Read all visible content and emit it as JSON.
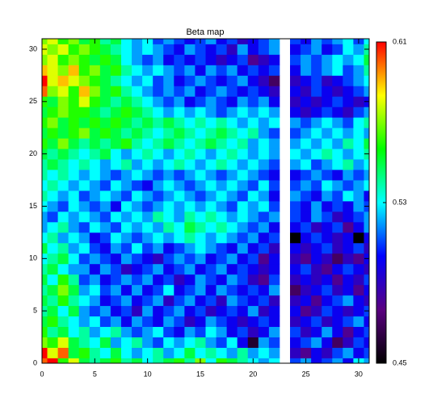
{
  "chart_data": {
    "type": "heatmap",
    "title": "Beta map",
    "x": [
      0,
      1,
      2,
      3,
      4,
      5,
      6,
      7,
      8,
      9,
      10,
      11,
      12,
      13,
      14,
      15,
      16,
      17,
      18,
      19,
      20,
      21,
      22,
      23,
      24,
      25,
      26,
      27,
      28,
      29,
      30,
      31
    ],
    "y": [
      0,
      1,
      2,
      3,
      4,
      5,
      6,
      7,
      8,
      9,
      10,
      11,
      12,
      13,
      14,
      15,
      16,
      17,
      18,
      19,
      20,
      21,
      22,
      23,
      24,
      25,
      26,
      27,
      28,
      29,
      30,
      31
    ],
    "xlim": [
      0,
      31
    ],
    "ylim": [
      0,
      31
    ],
    "xticks": [
      0,
      5,
      10,
      15,
      20,
      25,
      30
    ],
    "yticks": [
      0,
      5,
      10,
      15,
      20,
      25,
      30
    ],
    "zlim": [
      0.45,
      0.61
    ],
    "zticks": [
      0.45,
      0.53,
      0.61
    ],
    "colormap": [
      "#000000",
      "#5a0080",
      "#0000ff",
      "#00ffff",
      "#00ff00",
      "#ffff00",
      "#ff0000"
    ],
    "z": [
      [
        0.6,
        0.61,
        0.56,
        0.58,
        0.55,
        0.54,
        0.55,
        0.56,
        0.54,
        0.55,
        0.53,
        0.54,
        0.55,
        0.56,
        0.54,
        0.57,
        0.53,
        0.56,
        0.55,
        0.54,
        0.53,
        0.52,
        0.53,
        null,
        0.51,
        0.52,
        0.5,
        0.51,
        0.52,
        0.5,
        0.53,
        0.52
      ],
      [
        0.61,
        0.58,
        0.6,
        0.55,
        0.56,
        0.54,
        0.53,
        0.55,
        0.53,
        0.52,
        0.53,
        0.54,
        0.52,
        0.53,
        0.55,
        0.53,
        0.54,
        0.53,
        0.52,
        0.54,
        0.52,
        0.53,
        0.52,
        null,
        0.49,
        0.48,
        0.5,
        0.49,
        0.51,
        0.52,
        0.5,
        0.51
      ],
      [
        0.57,
        0.56,
        0.58,
        0.55,
        0.54,
        0.53,
        0.55,
        0.52,
        0.53,
        0.54,
        0.52,
        0.51,
        0.53,
        0.52,
        0.53,
        0.54,
        0.52,
        0.51,
        0.53,
        0.5,
        0.46,
        0.52,
        0.51,
        null,
        0.5,
        0.51,
        0.52,
        0.5,
        0.47,
        0.49,
        0.51,
        0.5
      ],
      [
        0.56,
        0.54,
        0.55,
        0.53,
        0.54,
        0.52,
        0.53,
        0.54,
        0.52,
        0.51,
        0.52,
        0.53,
        0.51,
        0.5,
        0.52,
        0.51,
        0.53,
        0.52,
        0.5,
        0.51,
        0.49,
        0.5,
        0.52,
        null,
        0.51,
        0.49,
        0.5,
        0.52,
        0.5,
        0.48,
        0.5,
        0.51
      ],
      [
        0.55,
        0.56,
        0.54,
        0.53,
        0.52,
        0.53,
        0.51,
        0.52,
        0.5,
        0.52,
        0.51,
        0.5,
        0.52,
        0.51,
        0.49,
        0.5,
        0.52,
        0.51,
        0.5,
        0.49,
        0.5,
        0.51,
        0.5,
        null,
        0.49,
        0.5,
        0.51,
        0.49,
        0.5,
        0.51,
        0.52,
        0.5
      ],
      [
        0.54,
        0.55,
        0.53,
        0.55,
        0.52,
        0.51,
        0.52,
        0.5,
        0.51,
        0.49,
        0.52,
        0.5,
        0.51,
        0.52,
        0.5,
        0.51,
        0.49,
        0.5,
        0.51,
        0.5,
        0.52,
        0.49,
        0.5,
        null,
        0.5,
        0.48,
        0.49,
        0.51,
        0.5,
        0.49,
        0.5,
        0.51
      ],
      [
        0.55,
        0.54,
        0.56,
        0.54,
        0.53,
        0.52,
        0.5,
        0.51,
        0.52,
        0.5,
        0.51,
        0.52,
        0.49,
        0.51,
        0.52,
        0.5,
        0.51,
        0.49,
        0.52,
        0.51,
        0.5,
        0.51,
        0.49,
        null,
        0.49,
        0.5,
        0.48,
        0.5,
        0.51,
        0.52,
        0.5,
        0.49
      ],
      [
        0.54,
        0.55,
        0.57,
        0.55,
        0.52,
        0.53,
        0.51,
        0.52,
        0.5,
        0.52,
        0.5,
        0.51,
        0.53,
        0.5,
        0.51,
        0.52,
        0.5,
        0.52,
        0.51,
        0.5,
        0.51,
        0.5,
        0.52,
        null,
        0.47,
        0.49,
        0.5,
        0.51,
        0.49,
        0.5,
        0.48,
        0.5
      ],
      [
        0.55,
        0.53,
        0.56,
        0.54,
        0.51,
        0.52,
        0.5,
        0.51,
        0.52,
        0.51,
        0.52,
        0.5,
        0.51,
        0.49,
        0.5,
        0.52,
        0.51,
        0.5,
        0.52,
        0.51,
        0.49,
        0.48,
        0.51,
        null,
        0.49,
        0.5,
        0.49,
        0.5,
        0.48,
        0.5,
        0.49,
        0.51
      ],
      [
        0.54,
        0.55,
        0.53,
        0.52,
        0.52,
        0.5,
        0.52,
        0.51,
        0.49,
        0.5,
        0.51,
        0.52,
        0.5,
        0.51,
        0.52,
        0.5,
        0.51,
        0.52,
        0.5,
        0.51,
        0.5,
        0.49,
        0.5,
        null,
        0.5,
        0.51,
        0.49,
        0.48,
        0.5,
        0.51,
        0.5,
        0.49
      ],
      [
        0.53,
        0.54,
        0.55,
        0.53,
        0.51,
        0.52,
        0.51,
        0.5,
        0.52,
        0.51,
        0.5,
        0.49,
        0.51,
        0.52,
        0.51,
        0.52,
        0.5,
        0.51,
        0.52,
        0.5,
        0.51,
        0.48,
        0.5,
        null,
        0.49,
        0.48,
        0.5,
        0.49,
        0.47,
        0.49,
        0.48,
        0.5
      ],
      [
        0.55,
        0.53,
        0.54,
        0.52,
        0.53,
        0.51,
        0.5,
        0.52,
        0.51,
        0.53,
        0.51,
        0.52,
        0.5,
        0.51,
        0.52,
        0.53,
        0.52,
        0.51,
        0.5,
        0.52,
        0.5,
        0.51,
        0.49,
        null,
        0.5,
        0.49,
        0.5,
        0.51,
        0.49,
        0.5,
        0.51,
        0.49
      ],
      [
        0.53,
        0.54,
        0.52,
        0.53,
        0.52,
        0.5,
        0.51,
        0.53,
        0.52,
        0.51,
        0.52,
        0.53,
        0.52,
        0.53,
        0.54,
        0.53,
        0.52,
        0.53,
        0.52,
        0.51,
        0.52,
        0.5,
        0.51,
        null,
        0.45,
        0.5,
        0.51,
        0.5,
        0.49,
        0.5,
        0.45,
        0.5
      ],
      [
        0.52,
        0.53,
        0.54,
        0.52,
        0.51,
        0.53,
        0.52,
        0.51,
        0.53,
        0.52,
        0.53,
        0.52,
        0.54,
        0.53,
        0.55,
        0.54,
        0.53,
        0.54,
        0.53,
        0.52,
        0.51,
        0.52,
        0.5,
        null,
        0.5,
        0.51,
        0.49,
        0.5,
        0.51,
        0.48,
        0.5,
        0.52
      ],
      [
        0.52,
        0.51,
        0.53,
        0.52,
        0.53,
        0.52,
        0.51,
        0.53,
        0.52,
        0.53,
        0.52,
        0.54,
        0.53,
        0.52,
        0.54,
        0.53,
        0.54,
        0.53,
        0.52,
        0.53,
        0.52,
        0.51,
        0.52,
        null,
        0.51,
        0.5,
        0.52,
        0.51,
        0.49,
        0.5,
        0.51,
        0.52
      ],
      [
        0.53,
        0.52,
        0.51,
        0.53,
        0.52,
        0.51,
        0.52,
        0.5,
        0.53,
        0.52,
        0.51,
        0.52,
        0.53,
        0.52,
        0.53,
        0.52,
        0.53,
        0.52,
        0.51,
        0.53,
        0.52,
        0.53,
        0.51,
        null,
        0.51,
        0.5,
        0.52,
        0.5,
        0.51,
        0.5,
        0.52,
        0.51
      ],
      [
        0.54,
        0.53,
        0.52,
        0.53,
        0.51,
        0.52,
        0.53,
        0.52,
        0.51,
        0.53,
        0.52,
        0.51,
        0.52,
        0.53,
        0.52,
        0.51,
        0.52,
        0.53,
        0.52,
        0.51,
        0.53,
        0.52,
        0.5,
        null,
        0.52,
        0.51,
        0.5,
        0.52,
        0.51,
        0.53,
        0.52,
        0.5
      ],
      [
        0.53,
        0.54,
        0.53,
        0.52,
        0.53,
        0.52,
        0.51,
        0.53,
        0.52,
        0.51,
        0.5,
        0.52,
        0.53,
        0.52,
        0.51,
        0.52,
        0.53,
        0.52,
        0.53,
        0.52,
        0.51,
        0.53,
        0.51,
        null,
        0.51,
        0.52,
        0.51,
        0.53,
        0.52,
        0.51,
        0.52,
        0.53
      ],
      [
        0.54,
        0.53,
        0.54,
        0.53,
        0.52,
        0.53,
        0.52,
        0.51,
        0.52,
        0.53,
        0.52,
        0.51,
        0.52,
        0.51,
        0.52,
        0.53,
        0.52,
        0.51,
        0.52,
        0.53,
        0.52,
        0.51,
        0.5,
        null,
        0.5,
        0.51,
        0.52,
        0.51,
        0.5,
        0.52,
        0.51,
        0.52
      ],
      [
        0.54,
        0.55,
        0.54,
        0.53,
        0.54,
        0.53,
        0.52,
        0.53,
        0.54,
        0.52,
        0.53,
        0.52,
        0.53,
        0.54,
        0.53,
        0.52,
        0.53,
        0.54,
        0.53,
        0.52,
        0.53,
        0.52,
        0.51,
        null,
        0.52,
        0.53,
        0.51,
        0.52,
        0.53,
        0.54,
        0.52,
        0.53
      ],
      [
        0.55,
        0.54,
        0.55,
        0.54,
        0.53,
        0.54,
        0.55,
        0.53,
        0.52,
        0.53,
        0.54,
        0.53,
        0.52,
        0.53,
        0.54,
        0.53,
        0.52,
        0.53,
        0.54,
        0.53,
        0.52,
        0.53,
        0.52,
        null,
        0.53,
        0.52,
        0.53,
        0.54,
        0.53,
        0.52,
        0.53,
        0.54
      ],
      [
        0.56,
        0.55,
        0.57,
        0.55,
        0.54,
        0.55,
        0.54,
        0.55,
        0.56,
        0.54,
        0.53,
        0.54,
        0.55,
        0.54,
        0.53,
        0.54,
        0.55,
        0.54,
        0.53,
        0.54,
        0.52,
        0.53,
        0.52,
        null,
        0.52,
        0.53,
        0.52,
        0.53,
        0.52,
        0.54,
        0.53,
        0.55
      ],
      [
        0.55,
        0.56,
        0.55,
        0.56,
        0.57,
        0.55,
        0.56,
        0.55,
        0.54,
        0.55,
        0.54,
        0.53,
        0.54,
        0.55,
        0.54,
        0.53,
        0.54,
        0.55,
        0.54,
        0.53,
        0.54,
        0.52,
        0.51,
        null,
        0.51,
        0.52,
        0.53,
        0.52,
        0.53,
        0.52,
        0.53,
        0.52
      ],
      [
        0.56,
        0.57,
        0.55,
        0.56,
        0.55,
        0.56,
        0.55,
        0.56,
        0.55,
        0.54,
        0.55,
        0.54,
        0.55,
        0.54,
        0.53,
        0.54,
        0.53,
        0.54,
        0.53,
        0.52,
        0.53,
        0.52,
        0.53,
        null,
        0.52,
        0.51,
        0.52,
        0.53,
        0.52,
        0.51,
        0.53,
        0.54
      ],
      [
        0.55,
        0.56,
        0.57,
        0.56,
        0.56,
        0.55,
        0.54,
        0.55,
        0.56,
        0.55,
        0.54,
        0.53,
        0.52,
        0.53,
        0.52,
        0.53,
        0.52,
        0.51,
        0.52,
        0.53,
        0.52,
        0.53,
        0.52,
        null,
        0.5,
        0.49,
        0.5,
        0.51,
        0.5,
        0.49,
        0.51,
        0.52
      ],
      [
        0.56,
        0.55,
        0.57,
        0.56,
        0.58,
        0.56,
        0.55,
        0.54,
        0.55,
        0.54,
        0.53,
        0.52,
        0.51,
        0.52,
        0.5,
        0.51,
        0.52,
        0.51,
        0.5,
        0.52,
        0.51,
        0.52,
        0.5,
        null,
        0.49,
        0.5,
        0.49,
        0.5,
        0.51,
        0.5,
        0.49,
        0.5
      ],
      [
        0.6,
        0.57,
        0.58,
        0.56,
        0.59,
        0.57,
        0.55,
        0.56,
        0.54,
        0.53,
        0.52,
        0.51,
        0.52,
        0.51,
        0.52,
        0.5,
        0.51,
        0.52,
        0.51,
        0.5,
        0.51,
        0.5,
        0.49,
        null,
        0.5,
        0.49,
        0.51,
        0.5,
        0.49,
        0.5,
        0.51,
        0.52
      ],
      [
        0.61,
        0.58,
        0.59,
        0.58,
        0.57,
        0.56,
        0.55,
        0.54,
        0.53,
        0.52,
        0.53,
        0.51,
        0.52,
        0.5,
        0.51,
        0.52,
        0.51,
        0.5,
        0.51,
        0.52,
        0.5,
        0.49,
        0.47,
        null,
        0.49,
        0.5,
        0.51,
        0.49,
        0.5,
        0.51,
        0.52,
        0.53
      ],
      [
        0.59,
        0.58,
        0.57,
        0.59,
        0.56,
        0.57,
        0.55,
        0.56,
        0.54,
        0.53,
        0.52,
        0.53,
        0.52,
        0.51,
        0.52,
        0.5,
        0.52,
        0.51,
        0.52,
        0.5,
        0.51,
        0.5,
        0.51,
        null,
        0.5,
        0.52,
        0.51,
        0.52,
        0.53,
        0.51,
        0.52,
        0.54
      ],
      [
        0.57,
        0.58,
        0.56,
        0.57,
        0.56,
        0.55,
        0.56,
        0.55,
        0.53,
        0.52,
        0.51,
        0.52,
        0.5,
        0.51,
        0.5,
        0.51,
        0.5,
        0.49,
        0.5,
        0.51,
        0.48,
        0.49,
        0.5,
        null,
        0.51,
        0.52,
        0.51,
        0.52,
        0.53,
        0.52,
        0.53,
        0.55
      ],
      [
        0.58,
        0.57,
        0.58,
        0.56,
        0.57,
        0.56,
        0.55,
        0.54,
        0.53,
        0.52,
        0.53,
        0.52,
        0.51,
        0.5,
        0.52,
        0.51,
        0.5,
        0.51,
        0.49,
        0.52,
        0.5,
        0.51,
        0.52,
        null,
        0.5,
        0.51,
        0.52,
        0.5,
        0.51,
        0.53,
        0.52,
        0.54
      ],
      [
        0.57,
        0.58,
        0.56,
        0.57,
        0.55,
        0.56,
        0.54,
        0.55,
        0.53,
        0.52,
        0.53,
        0.51,
        0.52,
        0.51,
        0.5,
        0.51,
        0.52,
        0.5,
        0.51,
        0.49,
        0.5,
        0.51,
        0.52,
        null,
        0.51,
        0.5,
        0.52,
        0.51,
        0.52,
        0.53,
        0.51,
        0.53
      ]
    ]
  }
}
